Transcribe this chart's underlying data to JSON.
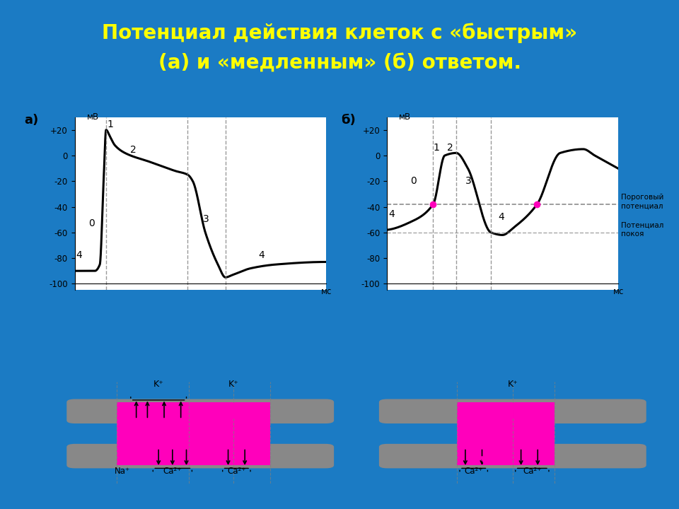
{
  "title_line1": "Потенциал действия клеток с «быстрым»",
  "title_line2": "(а) и «медленным» (б) ответом.",
  "title_color": "#FFFF00",
  "bg_color": "#1B7BC4",
  "panel_bg": "#FFFFFF",
  "ylabel_a": "мВ",
  "xlabel_a": "мс",
  "ylabel_b": "мВ",
  "xlabel_b": "мс",
  "ylim": [
    -105,
    30
  ],
  "yticks": [
    -100,
    -80,
    -60,
    -40,
    -20,
    0,
    20
  ],
  "ytick_labels": [
    "-100",
    "-80",
    "-60",
    "-40",
    "-20",
    "0",
    "+20"
  ],
  "panel_a_label": "а)",
  "panel_b_label": "б)",
  "threshold_potential": -38,
  "resting_potential": -60,
  "ion_bar_pink": "#FF00BB",
  "ion_bar_gray": "#888888",
  "dot_color": "#FF00BB",
  "arrow_black": "#000000",
  "arrow_pink": "#FF00BB"
}
